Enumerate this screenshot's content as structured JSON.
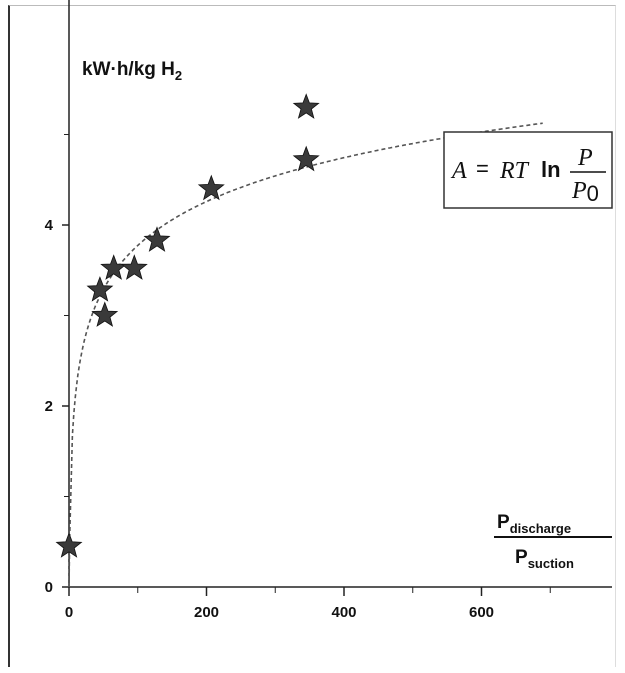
{
  "chart_data": {
    "type": "scatter",
    "title": "",
    "ylabel": {
      "text": "kW·h/kg H",
      "sub": "2"
    },
    "xlabel": {
      "top": "P",
      "top_sub": "discharge",
      "bottom": "P",
      "bottom_sub": "suction"
    },
    "xlim": [
      0,
      1000
    ],
    "ylim": [
      0,
      6.5
    ],
    "x_ticks": [
      0,
      200,
      400,
      600
    ],
    "x_tick_labels": [
      "0",
      "200",
      "400",
      "600"
    ],
    "y_ticks": [
      0,
      2,
      4
    ],
    "y_tick_labels": [
      "0",
      "2",
      "4"
    ],
    "grid": false,
    "series": [
      {
        "marker": "star",
        "color": "#3a3a3a",
        "points": [
          {
            "x": 0,
            "y": 0.45
          },
          {
            "x": 45,
            "y": 3.28
          },
          {
            "x": 52,
            "y": 3.0
          },
          {
            "x": 65,
            "y": 3.52
          },
          {
            "x": 95,
            "y": 3.52
          },
          {
            "x": 128,
            "y": 3.83
          },
          {
            "x": 207,
            "y": 4.4
          },
          {
            "x": 345,
            "y": 4.72
          },
          {
            "x": 345,
            "y": 5.3
          }
        ]
      },
      {
        "line_style": "dashed",
        "color": "#555555",
        "function": "A = RT ln(P/P0)",
        "x_range": [
          5,
          690
        ]
      }
    ],
    "annotation": {
      "formula": {
        "lhs": "A",
        "eq": "=",
        "rhs": "RT",
        "ln": "ln",
        "num": "P",
        "den": "P",
        "den_sub": "0"
      }
    }
  }
}
